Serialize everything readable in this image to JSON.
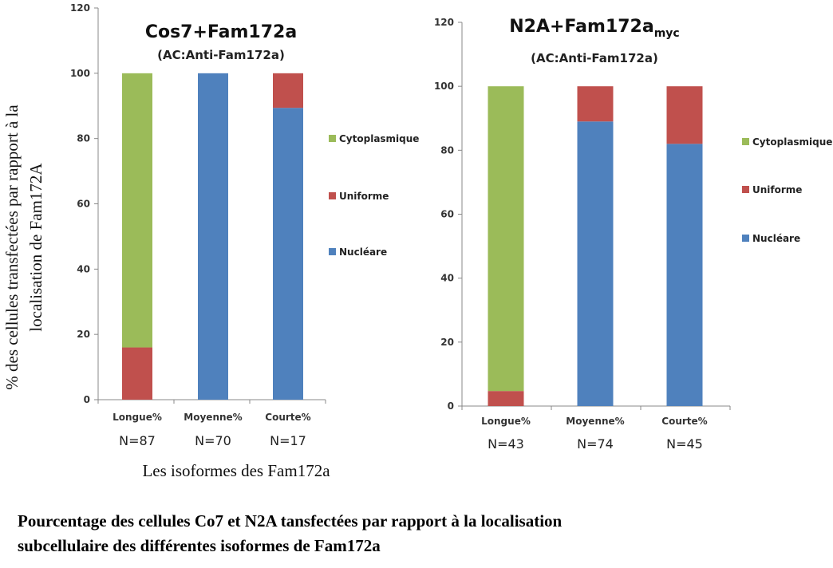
{
  "chart_data": [
    {
      "type": "bar",
      "stacked": true,
      "title": "Cos7+Fam172a",
      "subtitle": "(AC:Anti-Fam172a)",
      "categories": [
        "Longue%",
        "Moyenne%",
        "Courte%"
      ],
      "n_labels": [
        "N=87",
        "N=70",
        "N=17"
      ],
      "series": [
        {
          "name": "Nucléare",
          "color": "#4f81bd",
          "values": [
            0,
            100,
            89.4
          ]
        },
        {
          "name": "Uniforme",
          "color": "#c0504d",
          "values": [
            16,
            0,
            10.6
          ]
        },
        {
          "name": "Cytoplasmique",
          "color": "#9bbb59",
          "values": [
            84,
            0,
            0
          ]
        }
      ],
      "legend_order": [
        "Cytoplasmique",
        "Uniforme",
        "Nucléare"
      ],
      "ylim": [
        0,
        120
      ],
      "yticks": [
        0,
        20,
        40,
        60,
        80,
        100,
        120
      ],
      "ylabel": [
        "% des cellules transfectées par rapport à la",
        "localisation de Fam172A"
      ],
      "xlabel": "Les isoformes des Fam172a",
      "legend": "right",
      "grid": false
    },
    {
      "type": "bar",
      "stacked": true,
      "title": "N2A+Fam172a",
      "title_subscript": "myc",
      "subtitle": "(AC:Anti-Fam172a)",
      "categories": [
        "Longue%",
        "Moyenne%",
        "Courte%"
      ],
      "n_labels": [
        "N=43",
        "N=74",
        "N=45"
      ],
      "series": [
        {
          "name": "Nucléare",
          "color": "#4f81bd",
          "values": [
            0,
            89,
            82
          ]
        },
        {
          "name": "Uniforme",
          "color": "#c0504d",
          "values": [
            4.7,
            11,
            18
          ]
        },
        {
          "name": "Cytoplasmique",
          "color": "#9bbb59",
          "values": [
            95.3,
            0,
            0
          ]
        }
      ],
      "legend_order": [
        "Cytoplasmique",
        "Uniforme",
        "Nucléare"
      ],
      "ylim": [
        0,
        120
      ],
      "yticks": [
        0,
        20,
        40,
        60,
        80,
        100,
        120
      ],
      "legend": "right",
      "grid": false
    }
  ],
  "caption": {
    "line1": "Pourcentage des cellules Co7 et N2A tansfectées par rapport à la localisation",
    "line2": "subcellulaire des différentes isoformes de Fam172a"
  }
}
